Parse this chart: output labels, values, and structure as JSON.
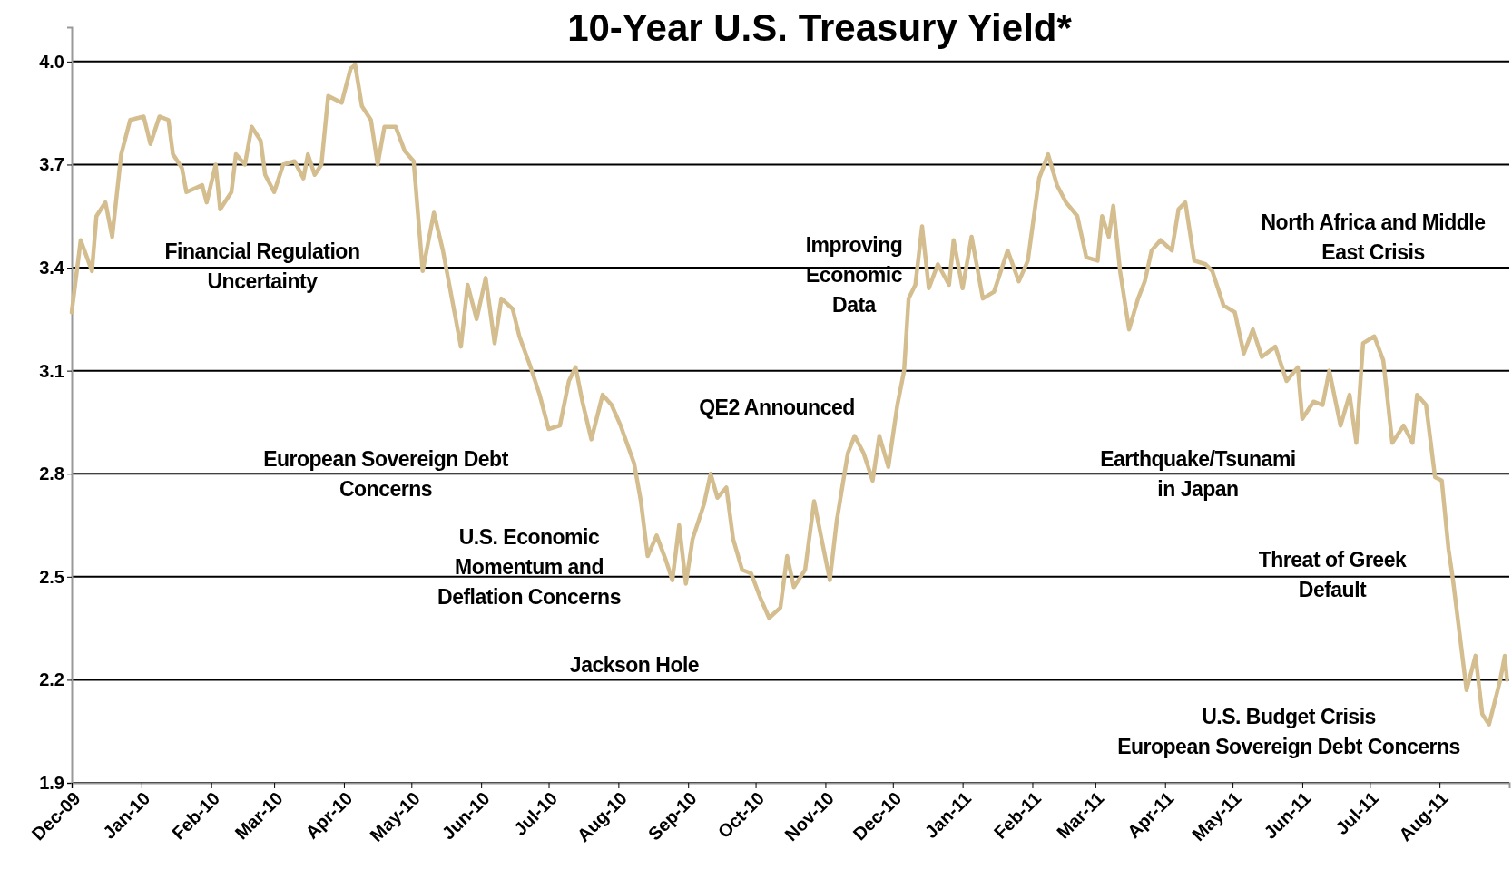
{
  "chart_data": {
    "type": "line",
    "title": "10-Year U.S. Treasury Yield*",
    "ylim": [
      1.9,
      4.1
    ],
    "yticks": [
      {
        "value": 1.9,
        "label": "1.9"
      },
      {
        "value": 2.2,
        "label": "2.2"
      },
      {
        "value": 2.5,
        "label": "2.5"
      },
      {
        "value": 2.8,
        "label": "2.8"
      },
      {
        "value": 3.1,
        "label": "3.1"
      },
      {
        "value": 3.4,
        "label": "3.4"
      },
      {
        "value": 3.7,
        "label": "3.7"
      },
      {
        "value": 4.0,
        "label": "4.0"
      }
    ],
    "xlim": [
      "2009-12-01",
      "2011-09-01"
    ],
    "xticks": [
      {
        "value": "2009-12-01",
        "label": "Dec-09"
      },
      {
        "value": "2010-01-01",
        "label": "Jan-10"
      },
      {
        "value": "2010-02-01",
        "label": "Feb-10"
      },
      {
        "value": "2010-03-01",
        "label": "Mar-10"
      },
      {
        "value": "2010-04-01",
        "label": "Apr-10"
      },
      {
        "value": "2010-05-01",
        "label": "May-10"
      },
      {
        "value": "2010-06-01",
        "label": "Jun-10"
      },
      {
        "value": "2010-07-01",
        "label": "Jul-10"
      },
      {
        "value": "2010-08-01",
        "label": "Aug-10"
      },
      {
        "value": "2010-09-01",
        "label": "Sep-10"
      },
      {
        "value": "2010-10-01",
        "label": "Oct-10"
      },
      {
        "value": "2010-11-01",
        "label": "Nov-10"
      },
      {
        "value": "2010-12-01",
        "label": "Dec-10"
      },
      {
        "value": "2011-01-01",
        "label": "Jan-11"
      },
      {
        "value": "2011-02-01",
        "label": "Feb-11"
      },
      {
        "value": "2011-03-01",
        "label": "Mar-11"
      },
      {
        "value": "2011-04-01",
        "label": "Apr-11"
      },
      {
        "value": "2011-05-01",
        "label": "May-11"
      },
      {
        "value": "2011-06-01",
        "label": "Jun-11"
      },
      {
        "value": "2011-07-01",
        "label": "Jul-11"
      },
      {
        "value": "2011-08-01",
        "label": "Aug-11"
      }
    ],
    "grid": "y",
    "marker": "none",
    "line_style": "solid",
    "series": [
      {
        "color": "#d4bd8e",
        "x": [
          "2009-12-01",
          "2009-12-05",
          "2009-12-10",
          "2009-12-12",
          "2009-12-16",
          "2009-12-19",
          "2009-12-23",
          "2009-12-27",
          "2010-01-02",
          "2010-01-05",
          "2010-01-09",
          "2010-01-13",
          "2010-01-15",
          "2010-01-19",
          "2010-01-21",
          "2010-01-28",
          "2010-01-30",
          "2010-02-03",
          "2010-02-05",
          "2010-02-10",
          "2010-02-12",
          "2010-02-16",
          "2010-02-19",
          "2010-02-23",
          "2010-02-25",
          "2010-03-01",
          "2010-03-05",
          "2010-03-10",
          "2010-03-14",
          "2010-03-16",
          "2010-03-19",
          "2010-03-22",
          "2010-03-25",
          "2010-03-31",
          "2010-04-04",
          "2010-04-06",
          "2010-04-09",
          "2010-04-13",
          "2010-04-16",
          "2010-04-19",
          "2010-04-24",
          "2010-04-28",
          "2010-05-02",
          "2010-05-06",
          "2010-05-11",
          "2010-05-15",
          "2010-05-19",
          "2010-05-23",
          "2010-05-26",
          "2010-05-30",
          "2010-06-03",
          "2010-06-07",
          "2010-06-10",
          "2010-06-15",
          "2010-06-18",
          "2010-06-23",
          "2010-06-27",
          "2010-07-01",
          "2010-07-06",
          "2010-07-10",
          "2010-07-13",
          "2010-07-16",
          "2010-07-20",
          "2010-07-25",
          "2010-07-29",
          "2010-08-02",
          "2010-08-08",
          "2010-08-11",
          "2010-08-14",
          "2010-08-18",
          "2010-08-22",
          "2010-08-25",
          "2010-08-28",
          "2010-08-31",
          "2010-09-03",
          "2010-09-08",
          "2010-09-11",
          "2010-09-14",
          "2010-09-18",
          "2010-09-21",
          "2010-09-25",
          "2010-09-29",
          "2010-10-03",
          "2010-10-07",
          "2010-10-12",
          "2010-10-15",
          "2010-10-18",
          "2010-10-23",
          "2010-10-27",
          "2010-10-30",
          "2010-11-03",
          "2010-11-06",
          "2010-11-11",
          "2010-11-14",
          "2010-11-18",
          "2010-11-22",
          "2010-11-25",
          "2010-11-29",
          "2010-12-03",
          "2010-12-06",
          "2010-12-08",
          "2010-12-11",
          "2010-12-14",
          "2010-12-17",
          "2010-12-21",
          "2010-12-26",
          "2010-12-28",
          "2011-01-01",
          "2011-01-05",
          "2011-01-10",
          "2011-01-15",
          "2011-01-21",
          "2011-01-26",
          "2011-01-30",
          "2011-02-04",
          "2011-02-08",
          "2011-02-12",
          "2011-02-16",
          "2011-02-21",
          "2011-02-25",
          "2011-03-02",
          "2011-03-04",
          "2011-03-07",
          "2011-03-09",
          "2011-03-12",
          "2011-03-16",
          "2011-03-20",
          "2011-03-23",
          "2011-03-26",
          "2011-03-30",
          "2011-04-04",
          "2011-04-07",
          "2011-04-10",
          "2011-04-14",
          "2011-04-19",
          "2011-04-22",
          "2011-04-27",
          "2011-05-02",
          "2011-05-06",
          "2011-05-10",
          "2011-05-14",
          "2011-05-20",
          "2011-05-25",
          "2011-05-30",
          "2011-06-01",
          "2011-06-06",
          "2011-06-10",
          "2011-06-13",
          "2011-06-18",
          "2011-06-22",
          "2011-06-25",
          "2011-06-28",
          "2011-07-03",
          "2011-07-07",
          "2011-07-11",
          "2011-07-16",
          "2011-07-20",
          "2011-07-22",
          "2011-07-26",
          "2011-07-30",
          "2011-08-02",
          "2011-08-05",
          "2011-08-07",
          "2011-08-10",
          "2011-08-13",
          "2011-08-17",
          "2011-08-20",
          "2011-08-23",
          "2011-08-28",
          "2011-08-30",
          "2011-08-31"
        ],
        "values": [
          3.27,
          3.48,
          3.39,
          3.55,
          3.59,
          3.49,
          3.73,
          3.83,
          3.84,
          3.76,
          3.84,
          3.83,
          3.73,
          3.69,
          3.62,
          3.64,
          3.59,
          3.7,
          3.57,
          3.62,
          3.73,
          3.7,
          3.81,
          3.77,
          3.67,
          3.62,
          3.7,
          3.71,
          3.66,
          3.73,
          3.67,
          3.7,
          3.9,
          3.88,
          3.98,
          3.99,
          3.87,
          3.83,
          3.7,
          3.81,
          3.81,
          3.74,
          3.71,
          3.39,
          3.56,
          3.45,
          3.31,
          3.17,
          3.35,
          3.25,
          3.37,
          3.18,
          3.31,
          3.28,
          3.2,
          3.11,
          3.03,
          2.93,
          2.94,
          3.07,
          3.11,
          3.01,
          2.9,
          3.03,
          3.0,
          2.94,
          2.83,
          2.72,
          2.56,
          2.62,
          2.55,
          2.49,
          2.65,
          2.48,
          2.61,
          2.71,
          2.8,
          2.73,
          2.76,
          2.61,
          2.52,
          2.51,
          2.44,
          2.38,
          2.41,
          2.56,
          2.47,
          2.52,
          2.72,
          2.62,
          2.49,
          2.66,
          2.86,
          2.91,
          2.86,
          2.78,
          2.91,
          2.82,
          3.0,
          3.1,
          3.31,
          3.35,
          3.52,
          3.34,
          3.41,
          3.35,
          3.48,
          3.34,
          3.49,
          3.31,
          3.33,
          3.45,
          3.36,
          3.42,
          3.66,
          3.73,
          3.64,
          3.59,
          3.55,
          3.43,
          3.42,
          3.55,
          3.49,
          3.58,
          3.39,
          3.22,
          3.31,
          3.36,
          3.45,
          3.48,
          3.45,
          3.57,
          3.59,
          3.42,
          3.41,
          3.39,
          3.29,
          3.27,
          3.15,
          3.22,
          3.14,
          3.17,
          3.07,
          3.11,
          2.96,
          3.01,
          3.0,
          3.1,
          2.94,
          3.03,
          2.89,
          3.18,
          3.2,
          3.13,
          2.89,
          2.94,
          2.89,
          3.03,
          3.0,
          2.79,
          2.78,
          2.58,
          2.49,
          2.33,
          2.17,
          2.27,
          2.1,
          2.07,
          2.2,
          2.27,
          2.2
        ]
      }
    ],
    "annotations": [
      "Financial Regulation\nUncertainty",
      "European Sovereign Debt\nConcerns",
      "U.S. Economic\nMomentum and\nDeflation Concerns",
      "Jackson Hole",
      "QE2 Announced",
      "Improving\nEconomic\nData",
      "Earthquake/Tsunami\nin Japan",
      "North Africa and Middle\nEast Crisis",
      "Threat of Greek\nDefault",
      "U.S. Budget Crisis\nEuropean Sovereign Debt Concerns"
    ]
  }
}
